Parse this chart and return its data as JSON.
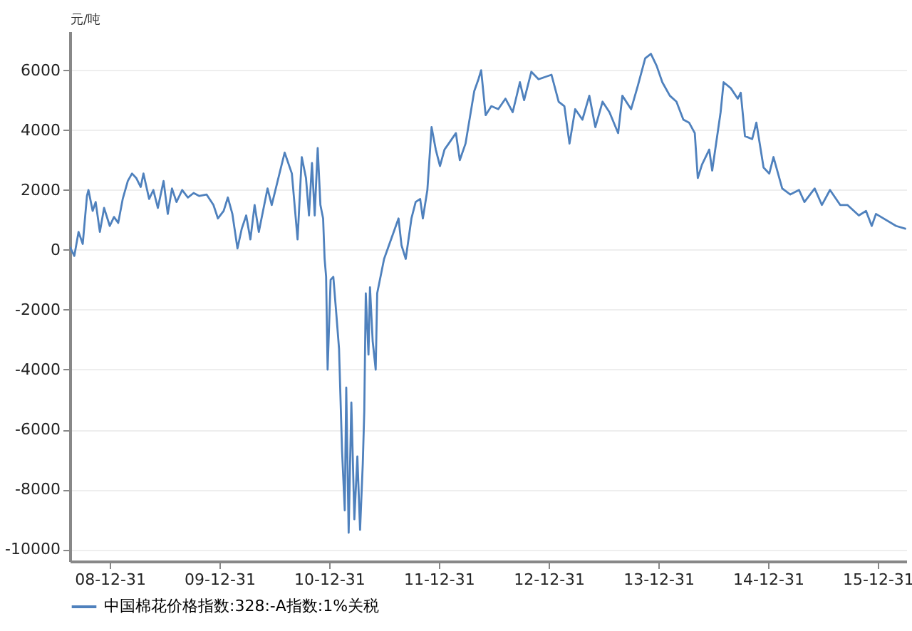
{
  "chart_data": {
    "type": "line",
    "ylabel": "元/吨",
    "xlim": [
      "2008-08-20",
      "2016-04-04"
    ],
    "xticks": [
      {
        "value": "2008-12-31",
        "label": "08-12-31"
      },
      {
        "value": "2009-12-31",
        "label": "09-12-31"
      },
      {
        "value": "2010-12-31",
        "label": "10-12-31"
      },
      {
        "value": "2011-12-31",
        "label": "11-12-31"
      },
      {
        "value": "2012-12-31",
        "label": "12-12-31"
      },
      {
        "value": "2013-12-31",
        "label": "13-12-31"
      },
      {
        "value": "2014-12-31",
        "label": "14-12-31"
      },
      {
        "value": "2015-12-31",
        "label": "15-12-31"
      }
    ],
    "ylim": [
      -10400,
      7300
    ],
    "yticks": [
      -10000,
      -8000,
      -6000,
      -4000,
      -2000,
      0,
      2000,
      4000,
      6000
    ],
    "grid": "y",
    "legend": "bottom",
    "line_style": "solid",
    "x": [
      "2008-08-20",
      "2008-09-04",
      "2008-09-18",
      "2008-10-02",
      "2008-10-16",
      "2008-10-21",
      "2008-11-04",
      "2008-11-14",
      "2008-11-28",
      "2008-12-12",
      "2008-12-31",
      "2009-01-14",
      "2009-01-28",
      "2009-02-12",
      "2009-03-01",
      "2009-03-15",
      "2009-03-29",
      "2009-04-13",
      "2009-04-22",
      "2009-05-11",
      "2009-05-25",
      "2009-06-09",
      "2009-06-28",
      "2009-07-12",
      "2009-07-26",
      "2009-08-10",
      "2009-08-29",
      "2009-09-17",
      "2009-10-06",
      "2009-10-25",
      "2009-11-18",
      "2009-12-11",
      "2009-12-26",
      "2010-01-14",
      "2010-01-28",
      "2010-02-12",
      "2010-03-01",
      "2010-03-15",
      "2010-03-30",
      "2010-04-13",
      "2010-04-27",
      "2010-05-11",
      "2010-05-25",
      "2010-06-09",
      "2010-06-23",
      "2010-08-05",
      "2010-08-29",
      "2010-09-17",
      "2010-10-01",
      "2010-10-15",
      "2010-10-25",
      "2010-11-04",
      "2010-11-13",
      "2010-11-23",
      "2010-12-02",
      "2010-12-11",
      "2010-12-16",
      "2010-12-21",
      "2010-12-26",
      "2011-01-05",
      "2011-01-14",
      "2011-01-24",
      "2011-02-02",
      "2011-02-12",
      "2011-02-21",
      "2011-02-26",
      "2011-03-06",
      "2011-03-15",
      "2011-03-25",
      "2011-04-04",
      "2011-04-13",
      "2011-04-22",
      "2011-04-27",
      "2011-05-02",
      "2011-05-11",
      "2011-05-16",
      "2011-05-25",
      "2011-06-04",
      "2011-06-09",
      "2011-07-02",
      "2011-08-19",
      "2011-08-29",
      "2011-09-12",
      "2011-10-01",
      "2011-10-15",
      "2011-10-30",
      "2011-11-08",
      "2011-11-23",
      "2011-12-07",
      "2011-12-21",
      "2012-01-04",
      "2012-01-19",
      "2012-02-02",
      "2012-02-26",
      "2012-03-10",
      "2012-03-29",
      "2012-04-27",
      "2012-05-11",
      "2012-05-20",
      "2012-06-04",
      "2012-06-23",
      "2012-07-16",
      "2012-08-09",
      "2012-09-02",
      "2012-09-26",
      "2012-10-10",
      "2012-11-03",
      "2012-11-27",
      "2013-01-09",
      "2013-02-02",
      "2013-02-21",
      "2013-03-10",
      "2013-03-29",
      "2013-04-22",
      "2013-05-15",
      "2013-06-04",
      "2013-06-28",
      "2013-07-21",
      "2013-08-19",
      "2013-09-02",
      "2013-10-01",
      "2013-10-24",
      "2013-11-17",
      "2013-12-06",
      "2013-12-25",
      "2014-01-13",
      "2014-02-07",
      "2014-03-01",
      "2014-03-24",
      "2014-04-12",
      "2014-05-01",
      "2014-05-11",
      "2014-05-25",
      "2014-06-18",
      "2014-06-28",
      "2014-07-26",
      "2014-08-05",
      "2014-08-29",
      "2014-09-21",
      "2014-10-01",
      "2014-10-15",
      "2014-11-08",
      "2014-11-22",
      "2014-12-16",
      "2015-01-04",
      "2015-01-18",
      "2015-02-16",
      "2015-03-15",
      "2015-04-13",
      "2015-05-01",
      "2015-06-04",
      "2015-06-28",
      "2015-07-25",
      "2015-08-28",
      "2015-09-21",
      "2015-10-29",
      "2015-11-22",
      "2015-12-11",
      "2015-12-25",
      "2016-03-01",
      "2016-04-03"
    ],
    "series": [
      {
        "name": "中国棉花价格指数:328:-A指数:1%关税",
        "color": "#4f81bd",
        "values": [
          100,
          -200,
          600,
          200,
          1800,
          2000,
          1300,
          1600,
          600,
          1400,
          800,
          1100,
          900,
          1700,
          2300,
          2550,
          2400,
          2100,
          2550,
          1700,
          2000,
          1400,
          2300,
          1200,
          2050,
          1600,
          2000,
          1750,
          1900,
          1800,
          1850,
          1500,
          1050,
          1300,
          1750,
          1200,
          50,
          700,
          1150,
          350,
          1500,
          600,
          1300,
          2050,
          1500,
          3250,
          2550,
          350,
          3100,
          2400,
          1150,
          2900,
          1150,
          3400,
          1500,
          1050,
          -300,
          -900,
          -4000,
          -1000,
          -900,
          -2150,
          -3300,
          -6700,
          -8700,
          -4600,
          -9450,
          -5100,
          -9000,
          -6900,
          -9350,
          -7150,
          -5400,
          -1450,
          -3500,
          -1250,
          -3050,
          -4000,
          -1450,
          -300,
          1050,
          150,
          -300,
          1050,
          1600,
          1700,
          1050,
          2000,
          4100,
          3350,
          2800,
          3350,
          3550,
          3900,
          3000,
          3550,
          5300,
          5700,
          6000,
          4500,
          4800,
          4700,
          5050,
          4600,
          5600,
          5000,
          5950,
          5700,
          5850,
          4950,
          4800,
          3550,
          4700,
          4350,
          5150,
          4100,
          4950,
          4600,
          3900,
          5150,
          4700,
          5500,
          6400,
          6550,
          6150,
          5600,
          5150,
          4950,
          4350,
          4250,
          3900,
          2400,
          2850,
          3350,
          2650,
          4600,
          5600,
          5400,
          5050,
          5250,
          3800,
          3700,
          4250,
          2750,
          2550,
          3100,
          2050,
          1850,
          2000,
          1600,
          2050,
          1500,
          2000,
          1500,
          1500,
          1150,
          1300,
          800,
          1200,
          800,
          700
        ]
      }
    ]
  }
}
